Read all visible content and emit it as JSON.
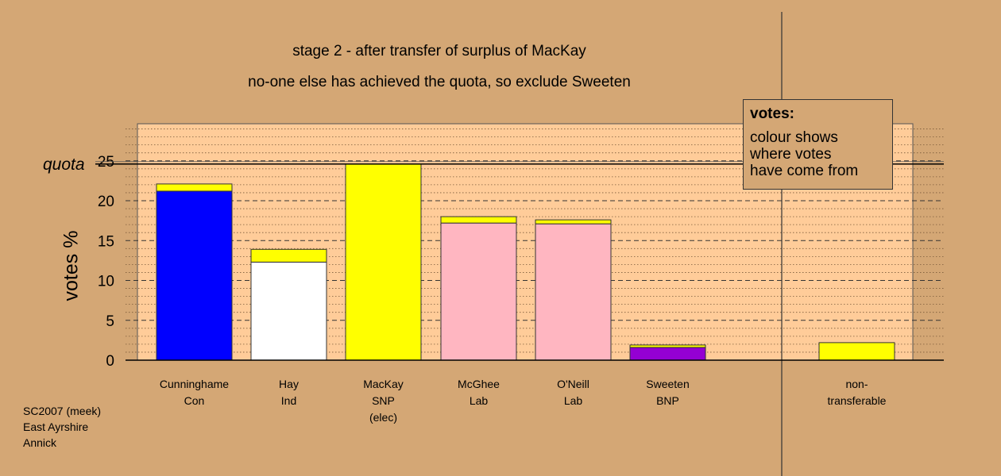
{
  "titles": {
    "line1": "stage 2 - after transfer of surplus of MacKay",
    "line2": "no-one else has achieved the quota, so exclude Sweeten"
  },
  "legend": {
    "title": "votes:",
    "lines": [
      "colour shows",
      "where votes",
      "have come from"
    ]
  },
  "footnote": [
    "SC2007 (meek)",
    "East Ayrshire",
    "Annick"
  ],
  "chart_data": {
    "type": "bar",
    "stacked": true,
    "ylabel": "votes %",
    "ylim": [
      0,
      29.9
    ],
    "yticks": [
      0,
      5,
      10,
      15,
      20,
      25
    ],
    "quota_label": "quota",
    "quota": 24.6,
    "bar_colors": {
      "Con": "#0000ff",
      "Ind": "#ffffff",
      "SNP": "#ffff00",
      "Lab": "#ffb6c1",
      "BNP": "#9400d3"
    },
    "background_color": "#ffcc99",
    "categories": [
      {
        "lines": [
          "Cunninghame",
          "Con"
        ],
        "segments": [
          {
            "value": 21.2,
            "color": "#0000ff"
          },
          {
            "value": 0.9,
            "color": "#ffff00"
          }
        ]
      },
      {
        "lines": [
          "Hay",
          "Ind"
        ],
        "segments": [
          {
            "value": 12.3,
            "color": "#ffffff"
          },
          {
            "value": 1.6,
            "color": "#ffff00"
          }
        ]
      },
      {
        "lines": [
          "MacKay",
          "SNP",
          "(elec)"
        ],
        "segments": [
          {
            "value": 24.6,
            "color": "#ffff00"
          }
        ]
      },
      {
        "lines": [
          "McGhee",
          "Lab"
        ],
        "segments": [
          {
            "value": 17.2,
            "color": "#ffb6c1"
          },
          {
            "value": 0.8,
            "color": "#ffff00"
          }
        ]
      },
      {
        "lines": [
          "O'Neill",
          "Lab"
        ],
        "segments": [
          {
            "value": 17.1,
            "color": "#ffb6c1"
          },
          {
            "value": 0.5,
            "color": "#ffff00"
          }
        ]
      },
      {
        "lines": [
          "Sweeten",
          "BNP"
        ],
        "segments": [
          {
            "value": 1.6,
            "color": "#9400d3"
          },
          {
            "value": 0.3,
            "color": "#ffff00"
          }
        ]
      }
    ],
    "nontransferable": {
      "lines": [
        "non-",
        "transferable"
      ],
      "segments": [
        {
          "value": 2.2,
          "color": "#ffff00"
        }
      ]
    }
  }
}
